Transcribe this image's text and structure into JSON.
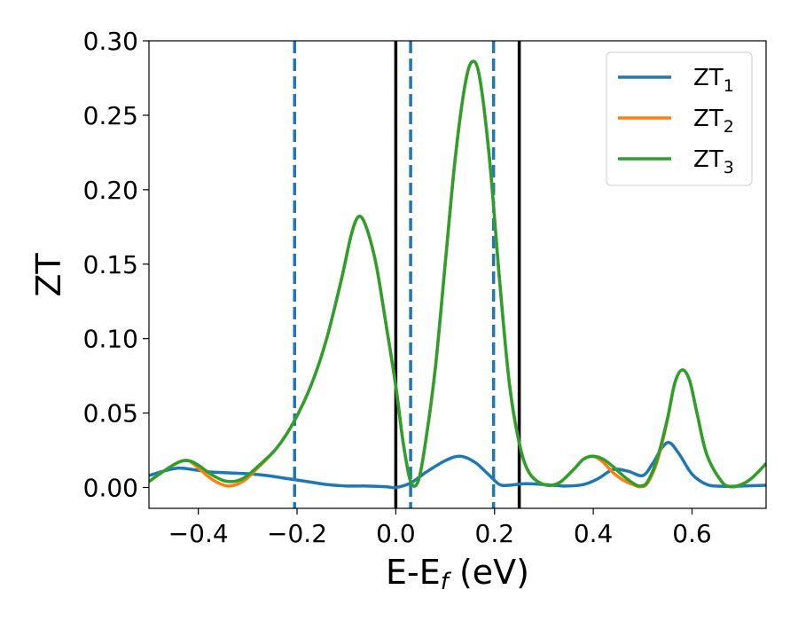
{
  "chart_data": {
    "type": "line",
    "title": "",
    "xlabel": {
      "base": "E-E",
      "sub": "f",
      "tail": " (eV)"
    },
    "ylabel": "ZT",
    "xlim": [
      -0.5,
      0.75
    ],
    "ylim": [
      -0.014,
      0.3
    ],
    "x_ticks": [
      {
        "value": -0.4,
        "label": "−0.4"
      },
      {
        "value": -0.2,
        "label": "−0.2"
      },
      {
        "value": 0.0,
        "label": "0.0"
      },
      {
        "value": 0.2,
        "label": "0.2"
      },
      {
        "value": 0.4,
        "label": "0.4"
      },
      {
        "value": 0.6,
        "label": "0.6"
      }
    ],
    "y_ticks": [
      {
        "value": 0.0,
        "label": "0.00"
      },
      {
        "value": 0.05,
        "label": "0.05"
      },
      {
        "value": 0.1,
        "label": "0.10"
      },
      {
        "value": 0.15,
        "label": "0.15"
      },
      {
        "value": 0.2,
        "label": "0.20"
      },
      {
        "value": 0.25,
        "label": "0.25"
      },
      {
        "value": 0.3,
        "label": "0.30"
      }
    ],
    "grid": false,
    "legend_placement": "top-right",
    "vlines": [
      {
        "x": -0.205,
        "style": "dashed",
        "color": "#1f77b4"
      },
      {
        "x": 0.03,
        "style": "dashed",
        "color": "#1f77b4"
      },
      {
        "x": 0.198,
        "style": "dashed",
        "color": "#1f77b4"
      },
      {
        "x": 0.0,
        "style": "solid",
        "color": "#000000"
      },
      {
        "x": 0.25,
        "style": "solid",
        "color": "#000000"
      }
    ],
    "series": [
      {
        "name": "ZT",
        "sub": "1",
        "color": "#1f77b4",
        "points": [
          [
            -0.5,
            0.008
          ],
          [
            -0.47,
            0.011
          ],
          [
            -0.44,
            0.013
          ],
          [
            -0.41,
            0.012
          ],
          [
            -0.38,
            0.0105
          ],
          [
            -0.35,
            0.01
          ],
          [
            -0.32,
            0.0095
          ],
          [
            -0.29,
            0.009
          ],
          [
            -0.26,
            0.008
          ],
          [
            -0.23,
            0.0065
          ],
          [
            -0.2,
            0.005
          ],
          [
            -0.17,
            0.0035
          ],
          [
            -0.14,
            0.002
          ],
          [
            -0.1,
            0.001
          ],
          [
            -0.06,
            0.001
          ],
          [
            -0.02,
            0.0005
          ],
          [
            0.0,
            0.0
          ],
          [
            0.03,
            0.003
          ],
          [
            0.06,
            0.01
          ],
          [
            0.1,
            0.018
          ],
          [
            0.13,
            0.021
          ],
          [
            0.16,
            0.017
          ],
          [
            0.19,
            0.008
          ],
          [
            0.21,
            0.002
          ],
          [
            0.23,
            0.0015
          ],
          [
            0.26,
            0.0025
          ],
          [
            0.3,
            0.002
          ],
          [
            0.34,
            0.001
          ],
          [
            0.38,
            0.002
          ],
          [
            0.41,
            0.006
          ],
          [
            0.44,
            0.012
          ],
          [
            0.47,
            0.011
          ],
          [
            0.5,
            0.008
          ],
          [
            0.52,
            0.016
          ],
          [
            0.54,
            0.027
          ],
          [
            0.555,
            0.03
          ],
          [
            0.575,
            0.022
          ],
          [
            0.6,
            0.009
          ],
          [
            0.63,
            0.002
          ],
          [
            0.66,
            0.0008
          ],
          [
            0.7,
            0.001
          ],
          [
            0.75,
            0.0015
          ]
        ]
      },
      {
        "name": "ZT",
        "sub": "2",
        "color": "#ff7f0e",
        "points": [
          [
            -0.5,
            0.004
          ],
          [
            -0.47,
            0.011
          ],
          [
            -0.44,
            0.017
          ],
          [
            -0.42,
            0.018
          ],
          [
            -0.4,
            0.013
          ],
          [
            -0.37,
            0.005
          ],
          [
            -0.34,
            0.001
          ],
          [
            -0.31,
            0.004
          ],
          [
            -0.28,
            0.013
          ],
          [
            -0.24,
            0.027
          ],
          [
            -0.205,
            0.045
          ],
          [
            -0.17,
            0.07
          ],
          [
            -0.14,
            0.1
          ],
          [
            -0.11,
            0.14
          ],
          [
            -0.09,
            0.17
          ],
          [
            -0.075,
            0.182
          ],
          [
            -0.06,
            0.175
          ],
          [
            -0.04,
            0.15
          ],
          [
            -0.02,
            0.11
          ],
          [
            0.0,
            0.068
          ],
          [
            0.015,
            0.03
          ],
          [
            0.03,
            0.004
          ],
          [
            0.045,
            0.004
          ],
          [
            0.06,
            0.03
          ],
          [
            0.08,
            0.08
          ],
          [
            0.1,
            0.15
          ],
          [
            0.12,
            0.22
          ],
          [
            0.14,
            0.27
          ],
          [
            0.155,
            0.286
          ],
          [
            0.17,
            0.275
          ],
          [
            0.19,
            0.22
          ],
          [
            0.21,
            0.14
          ],
          [
            0.23,
            0.07
          ],
          [
            0.25,
            0.03
          ],
          [
            0.27,
            0.01
          ],
          [
            0.3,
            0.002
          ],
          [
            0.33,
            0.003
          ],
          [
            0.36,
            0.012
          ],
          [
            0.38,
            0.019
          ],
          [
            0.4,
            0.021
          ],
          [
            0.42,
            0.017
          ],
          [
            0.44,
            0.01
          ],
          [
            0.46,
            0.005
          ],
          [
            0.48,
            0.002
          ],
          [
            0.495,
            0.0005
          ],
          [
            0.51,
            0.003
          ],
          [
            0.53,
            0.018
          ],
          [
            0.55,
            0.045
          ],
          [
            0.565,
            0.07
          ],
          [
            0.58,
            0.079
          ],
          [
            0.595,
            0.072
          ],
          [
            0.61,
            0.05
          ],
          [
            0.63,
            0.022
          ],
          [
            0.66,
            0.004
          ],
          [
            0.68,
            0.0005
          ],
          [
            0.7,
            0.002
          ],
          [
            0.72,
            0.006
          ],
          [
            0.75,
            0.016
          ]
        ]
      },
      {
        "name": "ZT",
        "sub": "3",
        "color": "#2ca02c",
        "points": [
          [
            -0.5,
            0.004
          ],
          [
            -0.47,
            0.011
          ],
          [
            -0.44,
            0.017
          ],
          [
            -0.42,
            0.018
          ],
          [
            -0.4,
            0.015
          ],
          [
            -0.37,
            0.008
          ],
          [
            -0.34,
            0.004
          ],
          [
            -0.31,
            0.006
          ],
          [
            -0.28,
            0.014
          ],
          [
            -0.24,
            0.027
          ],
          [
            -0.205,
            0.045
          ],
          [
            -0.17,
            0.07
          ],
          [
            -0.14,
            0.1
          ],
          [
            -0.11,
            0.14
          ],
          [
            -0.09,
            0.17
          ],
          [
            -0.075,
            0.182
          ],
          [
            -0.06,
            0.175
          ],
          [
            -0.04,
            0.15
          ],
          [
            -0.02,
            0.11
          ],
          [
            0.0,
            0.068
          ],
          [
            0.015,
            0.03
          ],
          [
            0.03,
            0.004
          ],
          [
            0.045,
            0.004
          ],
          [
            0.06,
            0.03
          ],
          [
            0.08,
            0.08
          ],
          [
            0.1,
            0.15
          ],
          [
            0.12,
            0.22
          ],
          [
            0.14,
            0.27
          ],
          [
            0.155,
            0.286
          ],
          [
            0.17,
            0.275
          ],
          [
            0.19,
            0.22
          ],
          [
            0.21,
            0.14
          ],
          [
            0.23,
            0.07
          ],
          [
            0.25,
            0.03
          ],
          [
            0.27,
            0.01
          ],
          [
            0.3,
            0.002
          ],
          [
            0.33,
            0.003
          ],
          [
            0.36,
            0.012
          ],
          [
            0.38,
            0.019
          ],
          [
            0.4,
            0.021
          ],
          [
            0.42,
            0.019
          ],
          [
            0.44,
            0.014
          ],
          [
            0.46,
            0.008
          ],
          [
            0.48,
            0.003
          ],
          [
            0.495,
            0.001
          ],
          [
            0.51,
            0.004
          ],
          [
            0.53,
            0.02
          ],
          [
            0.55,
            0.046
          ],
          [
            0.565,
            0.07
          ],
          [
            0.58,
            0.079
          ],
          [
            0.595,
            0.072
          ],
          [
            0.61,
            0.05
          ],
          [
            0.63,
            0.022
          ],
          [
            0.66,
            0.004
          ],
          [
            0.68,
            0.0005
          ],
          [
            0.7,
            0.002
          ],
          [
            0.72,
            0.006
          ],
          [
            0.75,
            0.016
          ]
        ]
      }
    ]
  }
}
